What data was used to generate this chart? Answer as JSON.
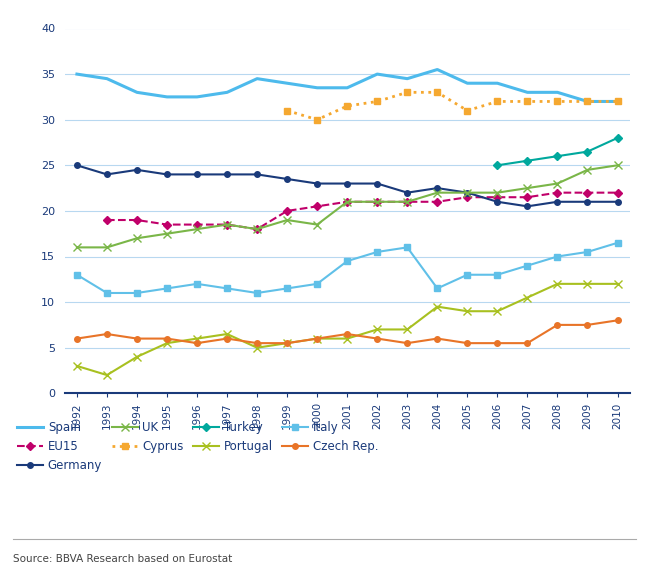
{
  "years": [
    1992,
    1993,
    1994,
    1995,
    1996,
    1997,
    1998,
    1999,
    2000,
    2001,
    2002,
    2003,
    2004,
    2005,
    2006,
    2007,
    2008,
    2009,
    2010
  ],
  "series": {
    "Spain": {
      "values": [
        35,
        34.5,
        33,
        32.5,
        32.5,
        33,
        34.5,
        34,
        33.5,
        33.5,
        35,
        34.5,
        35.5,
        34,
        34,
        33,
        33,
        32,
        32
      ],
      "color": "#4DBAEC",
      "linestyle": "-",
      "marker": "None",
      "lw": 2.2,
      "ms": 0
    },
    "EU15": {
      "values": [
        null,
        19,
        19,
        18.5,
        18.5,
        18.5,
        18,
        20,
        20.5,
        21,
        21,
        21,
        21,
        21.5,
        21.5,
        21.5,
        22,
        22,
        22
      ],
      "color": "#C0006A",
      "linestyle": "--",
      "marker": "D",
      "lw": 1.5,
      "ms": 4
    },
    "Germany": {
      "values": [
        25,
        24,
        24.5,
        24,
        24,
        24,
        24,
        23.5,
        23,
        23,
        23,
        22,
        22.5,
        22,
        21,
        20.5,
        21,
        21,
        21
      ],
      "color": "#1A3A7A",
      "linestyle": "-",
      "marker": "o",
      "lw": 1.5,
      "ms": 4
    },
    "UK": {
      "values": [
        16,
        16,
        17,
        17.5,
        18,
        18.5,
        18,
        19,
        18.5,
        21,
        21,
        21,
        22,
        22,
        22,
        22.5,
        23,
        24.5,
        25
      ],
      "color": "#7AB648",
      "linestyle": "-",
      "marker": "x",
      "lw": 1.5,
      "ms": 6
    },
    "Cyprus": {
      "values": [
        null,
        null,
        null,
        null,
        null,
        null,
        null,
        31,
        30,
        31.5,
        32,
        33,
        33,
        31,
        32,
        32,
        32,
        32,
        32
      ],
      "color": "#F5A830",
      "linestyle": ":",
      "marker": "s",
      "lw": 2.0,
      "ms": 5
    },
    "Turkey": {
      "values": [
        null,
        null,
        null,
        null,
        null,
        null,
        null,
        null,
        null,
        null,
        null,
        null,
        null,
        null,
        25,
        25.5,
        26,
        26.5,
        28
      ],
      "color": "#00A89D",
      "linestyle": "-",
      "marker": "D",
      "lw": 1.5,
      "ms": 4
    },
    "Portugal": {
      "values": [
        3,
        2,
        4,
        5.5,
        6,
        6.5,
        5,
        5.5,
        6,
        6,
        7,
        7,
        9.5,
        9,
        9,
        10.5,
        12,
        12,
        12
      ],
      "color": "#A8C020",
      "linestyle": "-",
      "marker": "x",
      "lw": 1.5,
      "ms": 6
    },
    "Italy": {
      "values": [
        13,
        11,
        11,
        11.5,
        12,
        11.5,
        11,
        11.5,
        12,
        14.5,
        15.5,
        16,
        11.5,
        13,
        13,
        14,
        15,
        15.5,
        16.5
      ],
      "color": "#60C0E8",
      "linestyle": "-",
      "marker": "s",
      "lw": 1.5,
      "ms": 4
    },
    "Czech Rep.": {
      "values": [
        6,
        6.5,
        6,
        6,
        5.5,
        6,
        5.5,
        5.5,
        6,
        6.5,
        6,
        5.5,
        6,
        5.5,
        5.5,
        5.5,
        7.5,
        7.5,
        8
      ],
      "color": "#E87428",
      "linestyle": "-",
      "marker": "o",
      "lw": 1.5,
      "ms": 4
    }
  },
  "legend_order": [
    "Spain",
    "EU15",
    "Germany",
    "UK",
    "Cyprus",
    "Turkey",
    "Portugal",
    "Italy",
    "Czech Rep."
  ],
  "ylim": [
    0,
    40
  ],
  "yticks": [
    0,
    5,
    10,
    15,
    20,
    25,
    30,
    35,
    40
  ],
  "background_color": "#FFFFFF",
  "grid_color": "#B8D8F0",
  "source_text": "Source: BBVA Research based on Eurostat"
}
